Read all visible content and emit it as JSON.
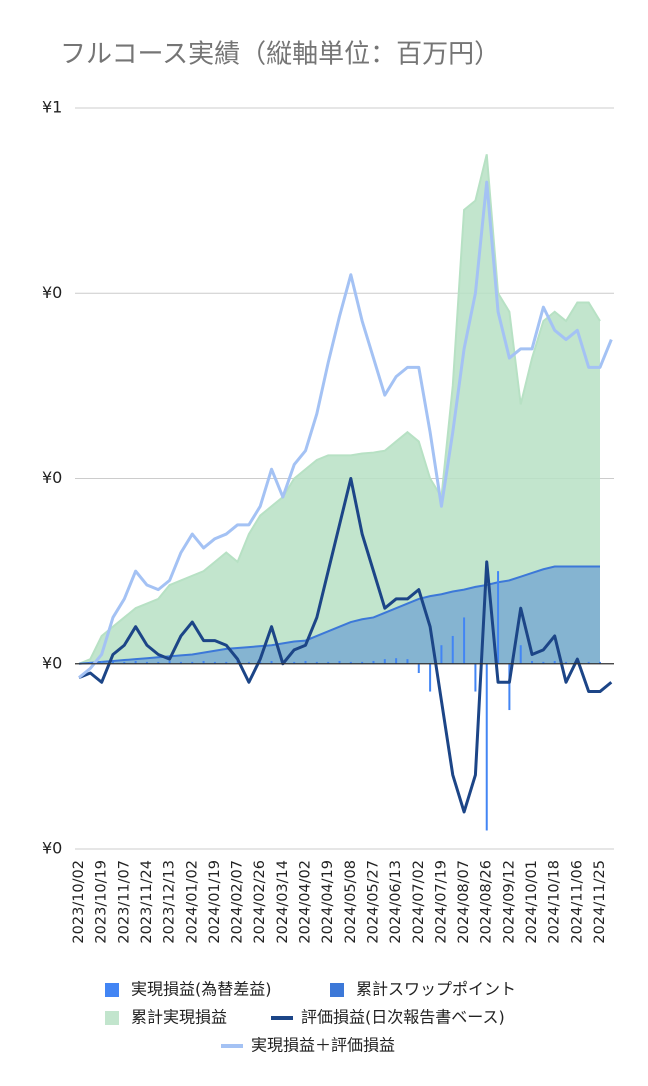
{
  "chart_data": {
    "type": "line",
    "title": "フルコース実績（縦軸単位：百万円）",
    "categories": [
      "2023/10/02",
      null,
      "2023/10/19",
      null,
      "2023/11/07",
      null,
      "2023/11/24",
      null,
      "2023/12/13",
      null,
      "2024/01/02",
      null,
      "2024/01/19",
      null,
      "2024/02/07",
      null,
      "2024/02/26",
      null,
      "2024/03/14",
      null,
      "2024/04/02",
      null,
      "2024/04/19",
      null,
      "2024/05/08",
      null,
      "2024/05/27",
      null,
      "2024/06/13",
      null,
      "2024/07/02",
      null,
      "2024/07/19",
      null,
      "2024/08/07",
      null,
      "2024/08/26",
      null,
      "2024/09/12",
      null,
      "2024/10/01",
      null,
      "2024/10/18",
      null,
      "2024/11/06",
      null,
      "2024/11/25",
      null
    ],
    "ylim": [
      -0.2,
      0.6
    ],
    "yticks": [
      {
        "value": -0.2,
        "label": "¥0"
      },
      {
        "value": 0,
        "label": "¥0"
      },
      {
        "value": 0.2,
        "label": "¥0"
      },
      {
        "value": 0.4,
        "label": "¥0"
      },
      {
        "value": 0.6,
        "label": "¥1"
      }
    ],
    "grid": true,
    "series": [
      {
        "name": "累計実現損益",
        "type": "area",
        "color": "#b7e1c4",
        "values": [
          0,
          0.005,
          0.03,
          0.04,
          0.05,
          0.06,
          0.065,
          0.07,
          0.085,
          0.09,
          0.095,
          0.1,
          0.11,
          0.12,
          0.11,
          0.14,
          0.16,
          0.17,
          0.18,
          0.2,
          0.21,
          0.22,
          0.225,
          0.225,
          0.225,
          0.227,
          0.228,
          0.23,
          0.24,
          0.25,
          0.24,
          0.2,
          0.18,
          0.3,
          0.49,
          0.5,
          0.55,
          0.4,
          0.38,
          0.28,
          0.33,
          0.37,
          0.38,
          0.37,
          0.39,
          0.39,
          0.37,
          null
        ]
      },
      {
        "name": "累計スワップポイント",
        "type": "area",
        "color": "#3c78d8",
        "values": [
          0,
          0.001,
          0.002,
          0.003,
          0.004,
          0.005,
          0.006,
          0.007,
          0.008,
          0.009,
          0.01,
          0.012,
          0.014,
          0.016,
          0.017,
          0.018,
          0.019,
          0.02,
          0.022,
          0.024,
          0.025,
          0.03,
          0.035,
          0.04,
          0.045,
          0.048,
          0.05,
          0.055,
          0.06,
          0.065,
          0.07,
          0.073,
          0.075,
          0.078,
          0.08,
          0.083,
          0.085,
          0.088,
          0.09,
          0.094,
          0.098,
          0.102,
          0.105,
          0.105,
          0.105,
          0.105,
          0.105,
          null
        ]
      },
      {
        "name": "実現損益(為替差益)",
        "type": "bar",
        "color": "#4285f4",
        "values": [
          0,
          0.002,
          0.003,
          0.002,
          0.002,
          0.003,
          0.002,
          0.002,
          0.003,
          0.002,
          0.002,
          0.003,
          0.002,
          0.002,
          0.003,
          0.002,
          0.002,
          0.003,
          0.002,
          0.002,
          0.003,
          0.002,
          0.002,
          0.003,
          0.002,
          0.002,
          0.003,
          0.005,
          0.006,
          0.005,
          -0.01,
          -0.03,
          0.02,
          0.03,
          0.05,
          -0.03,
          -0.18,
          0.1,
          -0.05,
          0.02,
          0.003,
          0.002,
          0.003,
          0.002,
          0.003,
          0.002,
          0.002,
          0
        ]
      },
      {
        "name": "評価損益(日次報告書ベース)",
        "type": "line",
        "color": "#1c4587",
        "values": [
          -0.015,
          -0.01,
          -0.02,
          0.01,
          0.02,
          0.04,
          0.02,
          0.01,
          0.005,
          0.03,
          0.045,
          0.025,
          0.025,
          0.02,
          0.005,
          -0.02,
          0.005,
          0.04,
          0,
          0.015,
          0.02,
          0.05,
          0.1,
          0.15,
          0.2,
          0.14,
          0.1,
          0.06,
          0.07,
          0.07,
          0.08,
          0.04,
          -0.04,
          -0.12,
          -0.16,
          -0.12,
          0.11,
          -0.02,
          -0.02,
          0.06,
          0.01,
          0.015,
          0.03,
          -0.02,
          0.005,
          -0.03,
          -0.03,
          -0.02
        ]
      },
      {
        "name": "実現損益＋評価損益",
        "type": "line",
        "color": "#a4c2f4",
        "values": [
          -0.015,
          -0.005,
          0.01,
          0.05,
          0.07,
          0.1,
          0.085,
          0.08,
          0.09,
          0.12,
          0.14,
          0.125,
          0.135,
          0.14,
          0.15,
          0.15,
          0.17,
          0.21,
          0.18,
          0.215,
          0.23,
          0.27,
          0.325,
          0.375,
          0.42,
          0.37,
          0.33,
          0.29,
          0.31,
          0.32,
          0.32,
          0.25,
          0.17,
          0.25,
          0.34,
          0.4,
          0.52,
          0.38,
          0.33,
          0.34,
          0.34,
          0.385,
          0.36,
          0.35,
          0.36,
          0.32,
          0.32,
          0.35
        ]
      }
    ]
  }
}
